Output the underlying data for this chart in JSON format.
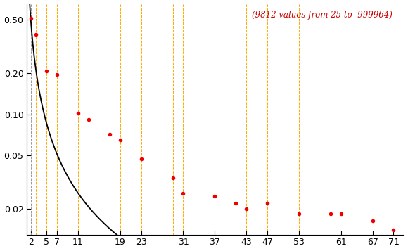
{
  "annotation": "(9812 values from 25 to  999964)",
  "annotation_color": "#cc0000",
  "dot_color": "#ee0000",
  "curve_color": "#000000",
  "vline_color_orange": "#ffaa00",
  "vline_color_gray": "#999999",
  "bg_color": "#ffffff",
  "primes": [
    2,
    3,
    5,
    7,
    11,
    13,
    17,
    19,
    23,
    29,
    31,
    37,
    41,
    43,
    47,
    53,
    59,
    61,
    67,
    71
  ],
  "x_ticks": [
    2,
    5,
    7,
    11,
    19,
    23,
    31,
    37,
    43,
    47,
    53,
    61,
    67,
    71
  ],
  "dot_values": [
    0.508,
    0.388,
    0.208,
    0.197,
    0.102,
    0.092,
    0.071,
    0.065,
    0.047,
    0.034,
    0.026,
    0.025,
    0.022,
    0.02,
    0.022,
    0.0185,
    0.0185,
    0.0185,
    0.0165,
    0.014
  ],
  "orange_vlines": [
    3,
    5,
    7,
    11,
    13,
    17,
    19,
    23,
    29,
    31,
    37,
    41,
    43,
    47,
    53
  ],
  "gray_vlines": [
    2
  ],
  "ylim_log": [
    0.013,
    0.65
  ],
  "yticks": [
    0.02,
    0.05,
    0.1,
    0.2,
    0.5
  ],
  "xlim": [
    1.3,
    73
  ],
  "curve_a": 1.0,
  "curve_c": 1.05
}
